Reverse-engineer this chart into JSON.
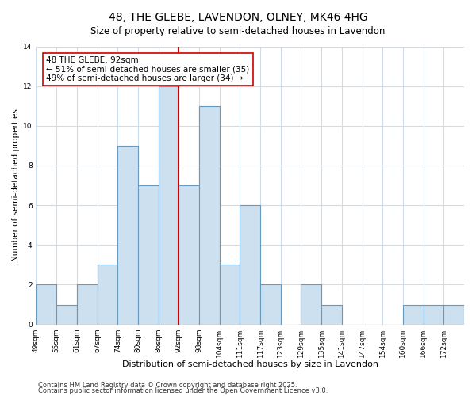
{
  "title": "48, THE GLEBE, LAVENDON, OLNEY, MK46 4HG",
  "subtitle": "Size of property relative to semi-detached houses in Lavendon",
  "xlabel": "Distribution of semi-detached houses by size in Lavendon",
  "ylabel": "Number of semi-detached properties",
  "bin_labels": [
    "49sqm",
    "55sqm",
    "61sqm",
    "67sqm",
    "74sqm",
    "80sqm",
    "86sqm",
    "92sqm",
    "98sqm",
    "104sqm",
    "111sqm",
    "117sqm",
    "123sqm",
    "129sqm",
    "135sqm",
    "141sqm",
    "147sqm",
    "154sqm",
    "160sqm",
    "166sqm",
    "172sqm"
  ],
  "bar_heights": [
    2,
    1,
    2,
    3,
    9,
    7,
    12,
    7,
    11,
    3,
    6,
    2,
    0,
    2,
    1,
    0,
    0,
    0,
    1,
    1,
    1
  ],
  "bar_color": "#cce0f0",
  "bar_edge_color": "#6699bb",
  "vline_x_index": 7,
  "vline_color": "#cc0000",
  "annotation_line1": "48 THE GLEBE: 92sqm",
  "annotation_line2": "← 51% of semi-detached houses are smaller (35)",
  "annotation_line3": "49% of semi-detached houses are larger (34) →",
  "annotation_box_color": "#ffffff",
  "annotation_box_edge": "#cc0000",
  "ylim": [
    0,
    14
  ],
  "yticks": [
    0,
    2,
    4,
    6,
    8,
    10,
    12,
    14
  ],
  "background_color": "#ffffff",
  "plot_bg_color": "#ffffff",
  "grid_color": "#ccddee",
  "footnote1": "Contains HM Land Registry data © Crown copyright and database right 2025.",
  "footnote2": "Contains public sector information licensed under the Open Government Licence v3.0.",
  "title_fontsize": 10,
  "subtitle_fontsize": 8.5,
  "xlabel_fontsize": 8,
  "ylabel_fontsize": 7.5,
  "tick_fontsize": 6.5,
  "annotation_fontsize": 7.5,
  "footnote_fontsize": 6
}
